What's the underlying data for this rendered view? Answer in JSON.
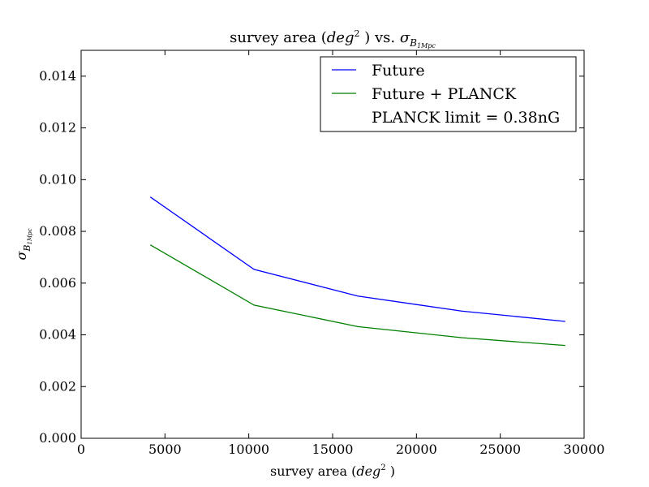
{
  "chart_data": {
    "type": "line",
    "title": {
      "prefix": "survey area (",
      "math_base": "deg",
      "math_sup": "2",
      "middle": " ) vs. ",
      "sigma": "σ",
      "sub1": "B",
      "sub2": "1Mpc"
    },
    "xlabel": {
      "prefix": "survey area (",
      "math_base": "deg",
      "math_sup": "2",
      "suffix": " )"
    },
    "ylabel": {
      "sigma": "σ",
      "sub1": "B",
      "sub2": "1Mpc"
    },
    "xlim": [
      0,
      30000
    ],
    "ylim": [
      0,
      0.015
    ],
    "xticks": [
      0,
      5000,
      10000,
      15000,
      20000,
      25000,
      30000
    ],
    "xtick_labels": [
      "0",
      "5000",
      "10000",
      "15000",
      "20000",
      "25000",
      "30000"
    ],
    "yticks": [
      0,
      0.002,
      0.004,
      0.006,
      0.008,
      0.01,
      0.012,
      0.014
    ],
    "ytick_labels": [
      "0.000",
      "0.002",
      "0.004",
      "0.006",
      "0.008",
      "0.010",
      "0.012",
      "0.014"
    ],
    "grid": false,
    "legend_position": "top-right",
    "series": [
      {
        "name": "Future",
        "color": "#0000ff",
        "x": [
          4125,
          10313,
          16500,
          22688,
          28875
        ],
        "y": [
          0.00933,
          0.00653,
          0.0055,
          0.00492,
          0.00452
        ]
      },
      {
        "name": "Future + PLANCK",
        "color": "#008000",
        "x": [
          4125,
          10313,
          16500,
          22688,
          28875
        ],
        "y": [
          0.00748,
          0.00515,
          0.00432,
          0.00389,
          0.00359
        ]
      }
    ],
    "legend_extra_label": "PLANCK limit = 0.38nG"
  }
}
